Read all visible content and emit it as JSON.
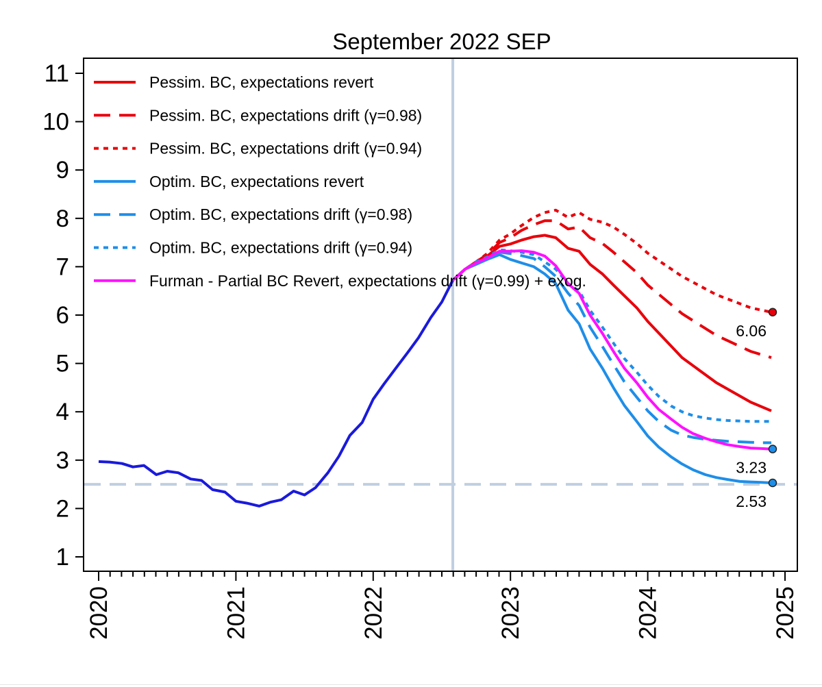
{
  "chart_data": {
    "type": "line",
    "title": "September 2022 SEP",
    "xlabel": "",
    "ylabel": "",
    "xlim": [
      2020,
      2025
    ],
    "ylim": [
      1,
      11
    ],
    "x_ticks": [
      "2020",
      "2021",
      "2022",
      "2023",
      "2024",
      "2025"
    ],
    "y_ticks": [
      "1",
      "2",
      "3",
      "4",
      "5",
      "6",
      "7",
      "8",
      "9",
      "10",
      "11"
    ],
    "legend_placement": "top-left",
    "reference_lines": {
      "vertical_x": 2022.58,
      "horizontal_y": 2.5
    },
    "history": {
      "color": "#1a1adc",
      "x": [
        2020.0,
        2020.08,
        2020.17,
        2020.25,
        2020.33,
        2020.42,
        2020.5,
        2020.58,
        2020.67,
        2020.75,
        2020.83,
        2020.92,
        2021.0,
        2021.08,
        2021.17,
        2021.25,
        2021.33,
        2021.42,
        2021.5,
        2021.58,
        2021.67,
        2021.75,
        2021.83,
        2021.92,
        2022.0,
        2022.08,
        2022.17,
        2022.25,
        2022.33,
        2022.42,
        2022.5,
        2022.58
      ],
      "y": [
        2.97,
        2.96,
        2.93,
        2.86,
        2.89,
        2.7,
        2.77,
        2.74,
        2.61,
        2.58,
        2.39,
        2.34,
        2.15,
        2.11,
        2.05,
        2.13,
        2.18,
        2.36,
        2.28,
        2.43,
        2.74,
        3.08,
        3.51,
        3.78,
        4.26,
        4.58,
        4.92,
        5.22,
        5.53,
        5.95,
        6.27,
        6.72
      ]
    },
    "series": [
      {
        "name": "Pessim. BC, expectations revert",
        "color": "#e8000b",
        "dash": "solid",
        "x": [
          2022.58,
          2022.67,
          2022.75,
          2022.83,
          2022.92,
          2023.0,
          2023.08,
          2023.17,
          2023.25,
          2023.33,
          2023.42,
          2023.5,
          2023.58,
          2023.67,
          2023.75,
          2023.83,
          2023.92,
          2024.0,
          2024.25,
          2024.5,
          2024.75,
          2024.9
        ],
        "y": [
          6.72,
          6.95,
          7.1,
          7.22,
          7.42,
          7.47,
          7.55,
          7.62,
          7.65,
          7.6,
          7.38,
          7.32,
          7.05,
          6.85,
          6.62,
          6.4,
          6.15,
          5.87,
          5.12,
          4.6,
          4.2,
          4.02
        ]
      },
      {
        "name": "Pessim. BC, expectations drift (γ=0.98)",
        "color": "#e8000b",
        "dash": "long",
        "x": [
          2022.58,
          2022.67,
          2022.75,
          2022.83,
          2022.92,
          2023.0,
          2023.08,
          2023.17,
          2023.25,
          2023.33,
          2023.42,
          2023.5,
          2023.58,
          2023.67,
          2023.75,
          2023.83,
          2023.92,
          2024.0,
          2024.25,
          2024.5,
          2024.75,
          2024.9
        ],
        "y": [
          6.72,
          6.95,
          7.1,
          7.25,
          7.5,
          7.6,
          7.75,
          7.87,
          7.95,
          7.95,
          7.78,
          7.82,
          7.6,
          7.48,
          7.3,
          7.1,
          6.88,
          6.62,
          6.03,
          5.58,
          5.25,
          5.12
        ]
      },
      {
        "name": "Pessim. BC, expectations drift (γ=0.94)",
        "color": "#e8000b",
        "dash": "short",
        "x": [
          2022.58,
          2022.67,
          2022.75,
          2022.83,
          2022.92,
          2023.0,
          2023.08,
          2023.17,
          2023.25,
          2023.33,
          2023.42,
          2023.5,
          2023.58,
          2023.67,
          2023.75,
          2023.83,
          2023.92,
          2024.0,
          2024.25,
          2024.5,
          2024.75,
          2024.9
        ],
        "y": [
          6.72,
          6.95,
          7.1,
          7.27,
          7.55,
          7.68,
          7.85,
          8.02,
          8.12,
          8.17,
          8.02,
          8.12,
          7.98,
          7.92,
          7.82,
          7.67,
          7.48,
          7.28,
          6.8,
          6.42,
          6.15,
          6.06
        ]
      },
      {
        "name": "Optim. BC, expectations revert",
        "color": "#1e8ee8",
        "dash": "solid",
        "x": [
          2022.58,
          2022.67,
          2022.75,
          2022.83,
          2022.92,
          2023.0,
          2023.08,
          2023.17,
          2023.25,
          2023.33,
          2023.42,
          2023.5,
          2023.58,
          2023.67,
          2023.75,
          2023.83,
          2023.92,
          2024.0,
          2024.08,
          2024.17,
          2024.25,
          2024.33,
          2024.42,
          2024.5,
          2024.58,
          2024.67,
          2024.75,
          2024.83,
          2024.9
        ],
        "y": [
          6.72,
          6.95,
          7.05,
          7.15,
          7.25,
          7.15,
          7.08,
          7.0,
          6.85,
          6.65,
          6.1,
          5.82,
          5.3,
          4.9,
          4.5,
          4.13,
          3.8,
          3.5,
          3.27,
          3.07,
          2.92,
          2.8,
          2.7,
          2.64,
          2.6,
          2.56,
          2.55,
          2.54,
          2.53
        ]
      },
      {
        "name": "Optim. BC, expectations drift (γ=0.98)",
        "color": "#1e8ee8",
        "dash": "long",
        "x": [
          2022.58,
          2022.67,
          2022.75,
          2022.83,
          2022.92,
          2023.0,
          2023.08,
          2023.17,
          2023.25,
          2023.33,
          2023.42,
          2023.5,
          2023.58,
          2023.67,
          2023.75,
          2023.83,
          2023.92,
          2024.0,
          2024.08,
          2024.17,
          2024.25,
          2024.33,
          2024.42,
          2024.5,
          2024.58,
          2024.67,
          2024.75,
          2024.83,
          2024.9
        ],
        "y": [
          6.72,
          6.95,
          7.08,
          7.18,
          7.3,
          7.27,
          7.23,
          7.17,
          7.0,
          6.8,
          6.45,
          6.2,
          5.75,
          5.35,
          4.98,
          4.62,
          4.3,
          4.02,
          3.8,
          3.62,
          3.52,
          3.47,
          3.43,
          3.41,
          3.39,
          3.38,
          3.37,
          3.36,
          3.36
        ]
      },
      {
        "name": "Optim. BC, expectations drift (γ=0.94)",
        "color": "#1e8ee8",
        "dash": "short",
        "x": [
          2022.58,
          2022.67,
          2022.75,
          2022.83,
          2022.92,
          2023.0,
          2023.08,
          2023.17,
          2023.25,
          2023.33,
          2023.42,
          2023.5,
          2023.58,
          2023.67,
          2023.75,
          2023.83,
          2023.92,
          2024.0,
          2024.08,
          2024.17,
          2024.25,
          2024.33,
          2024.42,
          2024.5,
          2024.58,
          2024.67,
          2024.75,
          2024.83,
          2024.9
        ],
        "y": [
          6.72,
          6.95,
          7.1,
          7.2,
          7.35,
          7.33,
          7.3,
          7.25,
          7.1,
          6.95,
          6.65,
          6.5,
          6.1,
          5.75,
          5.42,
          5.1,
          4.82,
          4.55,
          4.32,
          4.12,
          4.0,
          3.92,
          3.87,
          3.84,
          3.82,
          3.81,
          3.8,
          3.8,
          3.8
        ]
      },
      {
        "name": "Furman - Partial BC Revert, expectations drift (γ=0.99) + exog.",
        "color": "#ff10ff",
        "dash": "solid",
        "x": [
          2022.58,
          2022.67,
          2022.75,
          2022.83,
          2022.92,
          2023.0,
          2023.08,
          2023.17,
          2023.25,
          2023.33,
          2023.42,
          2023.5,
          2023.58,
          2023.67,
          2023.75,
          2023.83,
          2023.92,
          2024.0,
          2024.08,
          2024.17,
          2024.25,
          2024.33,
          2024.42,
          2024.5,
          2024.58,
          2024.67,
          2024.75,
          2024.83,
          2024.9
        ],
        "y": [
          6.72,
          6.95,
          7.08,
          7.18,
          7.32,
          7.32,
          7.33,
          7.3,
          7.22,
          7.02,
          6.65,
          6.45,
          6.0,
          5.62,
          5.25,
          4.9,
          4.6,
          4.3,
          4.05,
          3.85,
          3.68,
          3.55,
          3.45,
          3.38,
          3.32,
          3.28,
          3.25,
          3.24,
          3.23
        ]
      }
    ],
    "endpoints": [
      {
        "label": "6.06",
        "x": 2024.91,
        "y": 6.06,
        "fill": "#e8000b"
      },
      {
        "label": "3.23",
        "x": 2024.91,
        "y": 3.23,
        "fill": "#1e8ee8"
      },
      {
        "label": "2.53",
        "x": 2024.91,
        "y": 2.53,
        "fill": "#1e8ee8"
      }
    ]
  }
}
